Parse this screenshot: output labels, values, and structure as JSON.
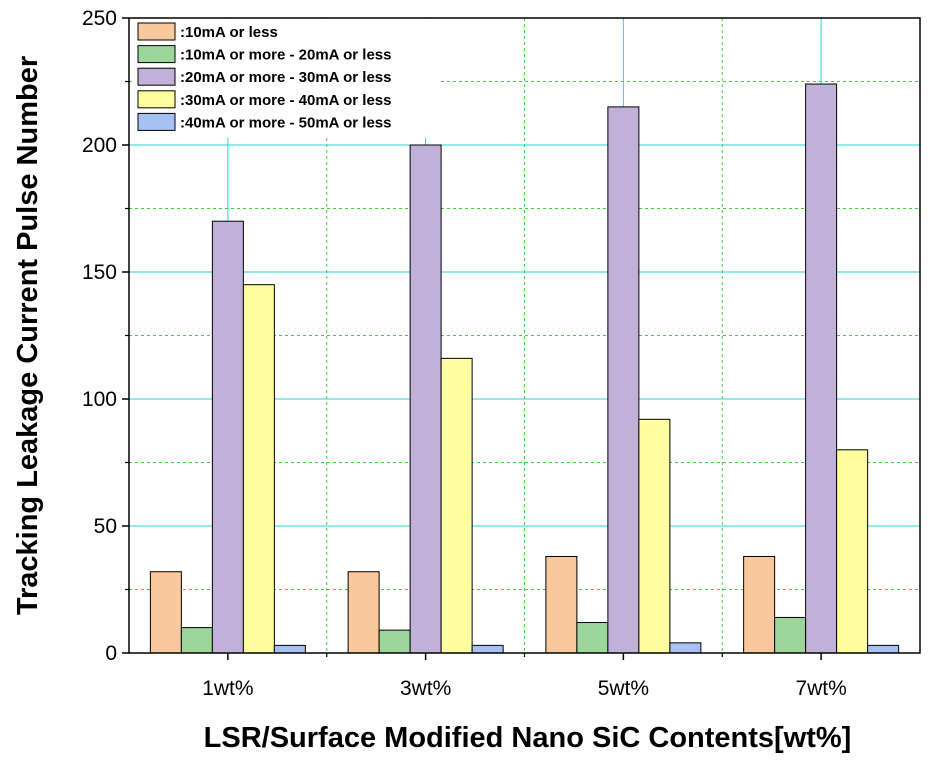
{
  "chart_data": {
    "type": "bar",
    "title": "",
    "xlabel": "LSR/Surface Modified Nano SiC Contents[wt%]",
    "ylabel": "Tracking Leakage Current Pulse Number",
    "categories": [
      "1wt%",
      "3wt%",
      "5wt%",
      "7wt%"
    ],
    "ylim": [
      0,
      250
    ],
    "yticks": [
      0,
      50,
      100,
      150,
      200,
      250
    ],
    "grid": true,
    "legend_position": "top-left",
    "series": [
      {
        "name": ":10mA or less",
        "color": "#F9C89C",
        "values": [
          32,
          32,
          38,
          38
        ]
      },
      {
        "name": ":10mA or more - 20mA or less",
        "color": "#9DD69A",
        "values": [
          10,
          9,
          12,
          14
        ]
      },
      {
        "name": ":20mA or more - 30mA or less",
        "color": "#C1B1D8",
        "values": [
          170,
          200,
          215,
          224
        ]
      },
      {
        "name": ":30mA or more - 40mA or less",
        "color": "#FFFFA0",
        "values": [
          145,
          116,
          92,
          80
        ]
      },
      {
        "name": ":40mA or more - 50mA or less",
        "color": "#A6C2F5",
        "values": [
          3,
          3,
          4,
          3
        ]
      }
    ],
    "colors": {
      "grid_major": "#29D3D8",
      "grid_minor": "#3FCF3A",
      "bar_stroke": "#000000"
    }
  }
}
